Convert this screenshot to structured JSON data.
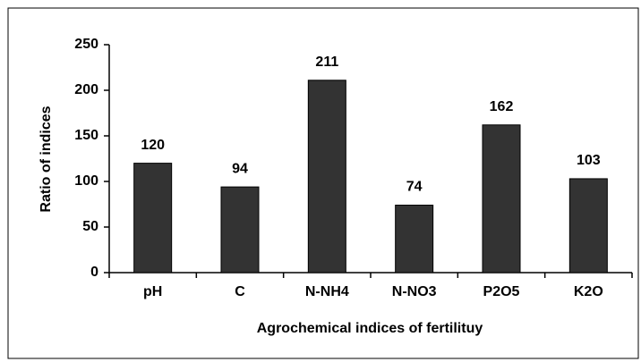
{
  "chart_data": {
    "type": "bar",
    "x_label": "Agrochemical indices of fertilituy",
    "y_label": "Ratio of indices",
    "categories": [
      "pH",
      "C",
      "N-NH4",
      "N-NO3",
      "P2O5",
      "K2O"
    ],
    "values": [
      120,
      94,
      211,
      74,
      162,
      103
    ],
    "color": "#333333",
    "ylim": [
      0,
      250
    ],
    "yticks": [
      0,
      50,
      100,
      150,
      200,
      250
    ],
    "grid": false
  }
}
